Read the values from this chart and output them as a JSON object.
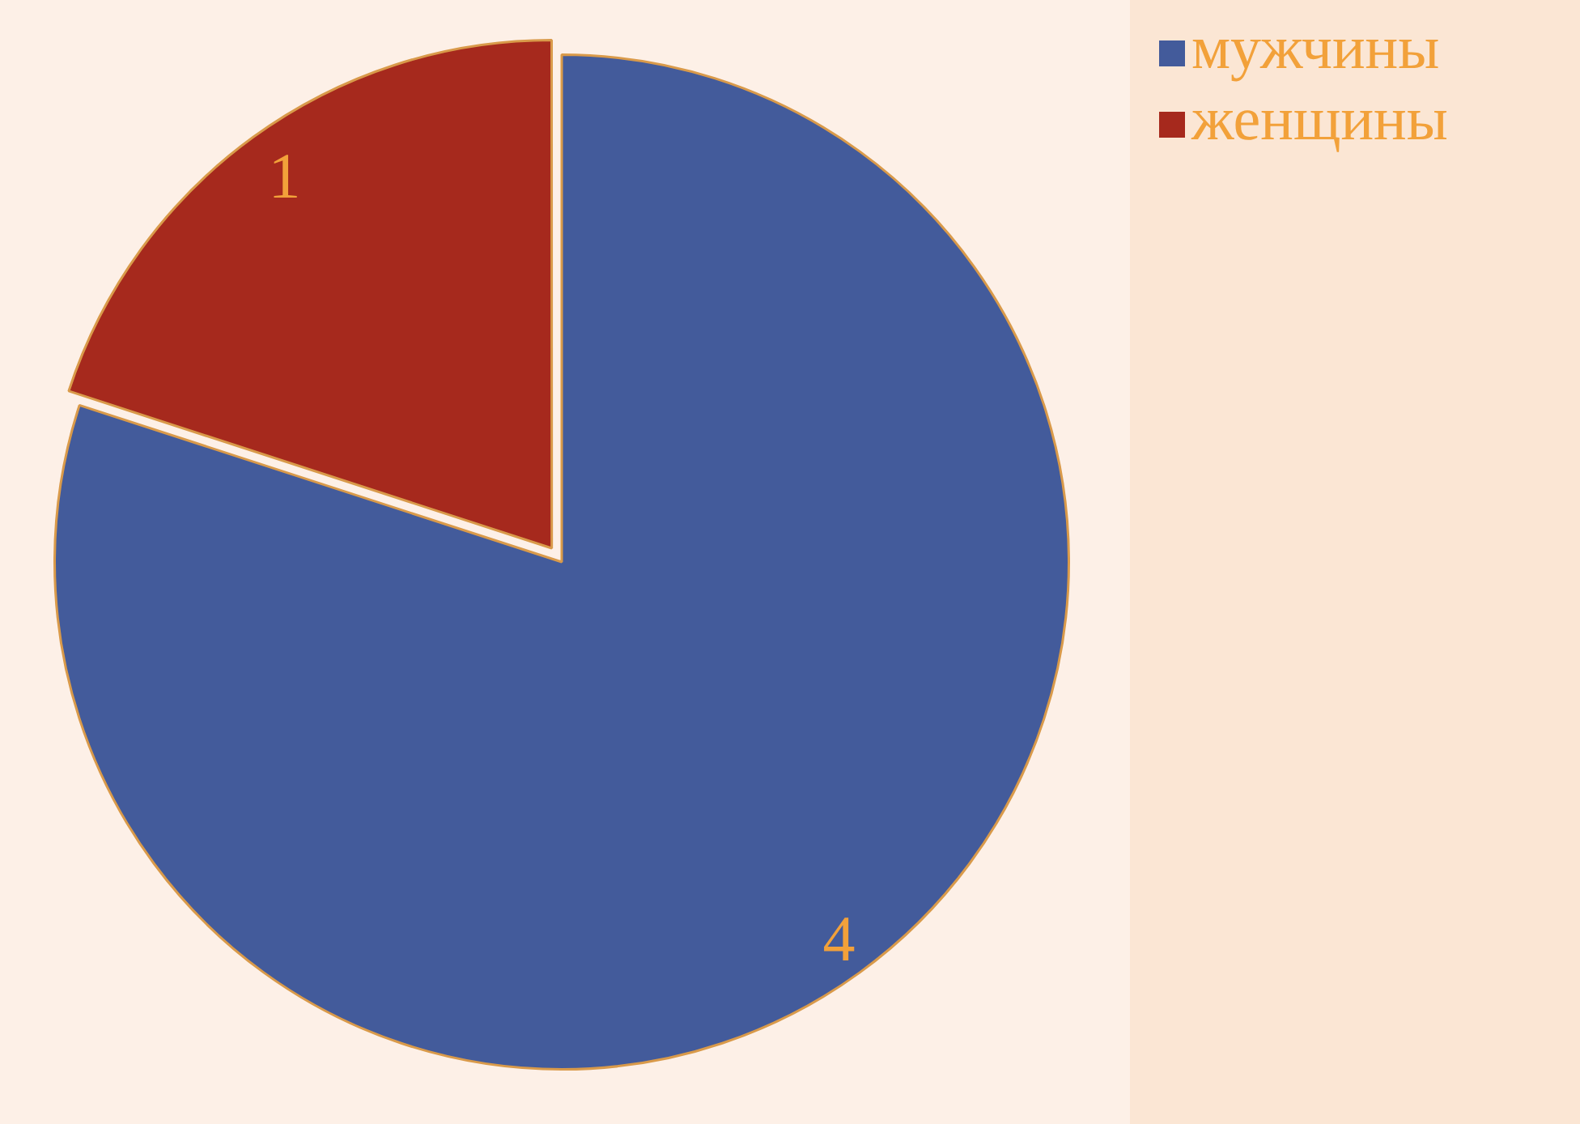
{
  "chart_data": {
    "type": "pie",
    "categories": [
      "мужчины",
      "женщины"
    ],
    "values": [
      4,
      1
    ],
    "colors": [
      "#435b9b",
      "#a6291d"
    ],
    "data_labels": true,
    "legend": "top right"
  }
}
